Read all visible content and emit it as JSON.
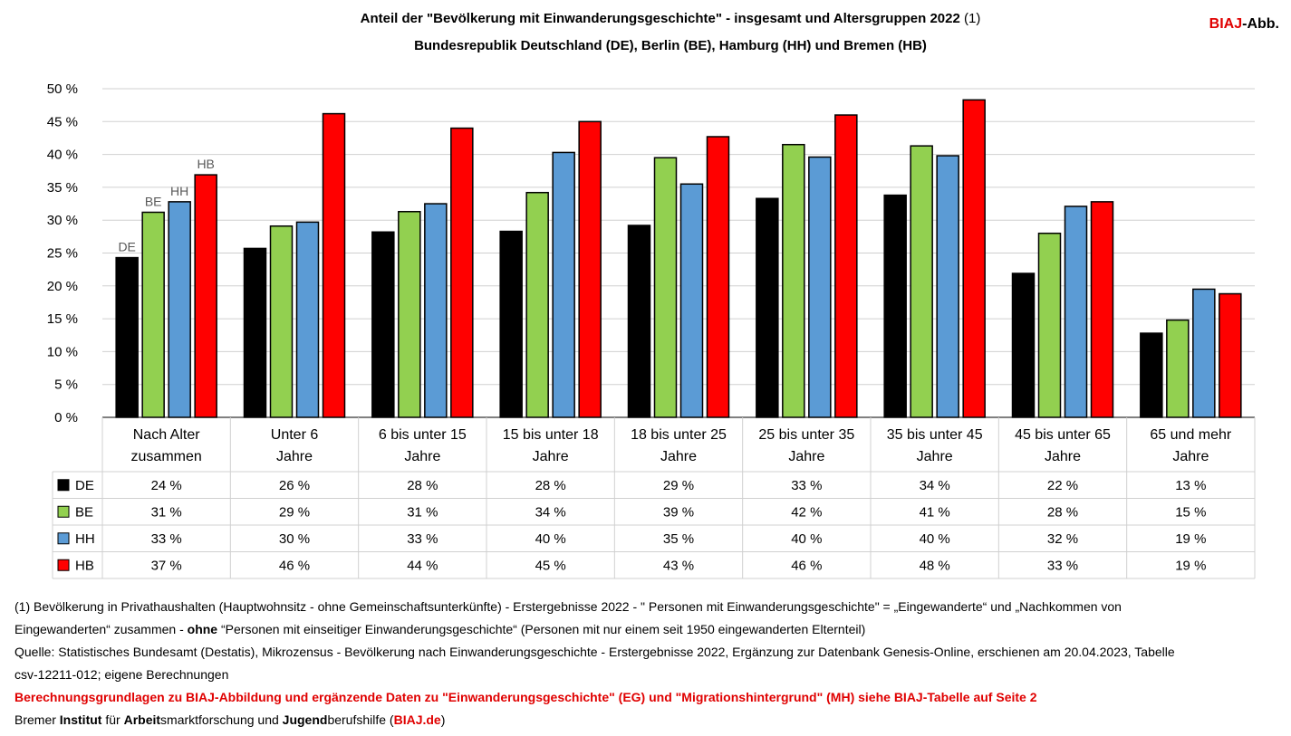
{
  "header": {
    "title_line1": "Anteil der \"Bevölkerung mit Einwanderungsgeschichte\" - insgesamt und Altersgruppen 2022",
    "title_note": "(1)",
    "title_line2": "Bundesrepublik Deutschland (DE), Berlin (BE), Hamburg (HH) und Bremen (HB)",
    "logo_red": "BIAJ",
    "logo_rest": "-Abb."
  },
  "chart_data": {
    "type": "bar",
    "categories": [
      [
        "Nach Alter",
        "zusammen"
      ],
      [
        "Unter 6",
        "Jahre"
      ],
      [
        "6 bis unter 15",
        "Jahre"
      ],
      [
        "15 bis unter 18",
        "Jahre"
      ],
      [
        "18 bis unter 25",
        "Jahre"
      ],
      [
        "25 bis unter 35",
        "Jahre"
      ],
      [
        "35 bis unter 45",
        "Jahre"
      ],
      [
        "45 bis unter 65",
        "Jahre"
      ],
      [
        "65 und mehr",
        "Jahre"
      ]
    ],
    "series": [
      {
        "name": "DE",
        "color": "#000000",
        "values": [
          24.3,
          25.7,
          28.2,
          28.3,
          29.2,
          33.3,
          33.8,
          21.9,
          12.8
        ],
        "labels": [
          "24 %",
          "26 %",
          "28 %",
          "28 %",
          "29 %",
          "33 %",
          "34 %",
          "22 %",
          "13 %"
        ]
      },
      {
        "name": "BE",
        "color": "#92d050",
        "values": [
          31.2,
          29.1,
          31.3,
          34.2,
          39.5,
          41.5,
          41.3,
          28.0,
          14.8
        ],
        "labels": [
          "31 %",
          "29 %",
          "31 %",
          "34 %",
          "39 %",
          "42 %",
          "41 %",
          "28 %",
          "15 %"
        ]
      },
      {
        "name": "HH",
        "color": "#5b9bd5",
        "values": [
          32.8,
          29.7,
          32.5,
          40.3,
          35.5,
          39.6,
          39.8,
          32.1,
          19.5
        ],
        "labels": [
          "33 %",
          "30 %",
          "33 %",
          "40 %",
          "35 %",
          "40 %",
          "40 %",
          "32 %",
          "19 %"
        ]
      },
      {
        "name": "HB",
        "color": "#ff0000",
        "values": [
          36.9,
          46.2,
          44.0,
          45.0,
          42.7,
          46.0,
          48.3,
          32.8,
          18.8
        ],
        "labels": [
          "37 %",
          "46 %",
          "44 %",
          "45 %",
          "43 %",
          "46 %",
          "48 %",
          "33 %",
          "19 %"
        ]
      }
    ],
    "first_group_bar_labels": [
      "DE",
      "BE",
      "HH",
      "HB"
    ],
    "y_ticks": [
      "0 %",
      "5 %",
      "10 %",
      "15 %",
      "20 %",
      "25 %",
      "30 %",
      "35 %",
      "40 %",
      "45 %",
      "50 %"
    ],
    "ylim": [
      0,
      50
    ],
    "grid": true,
    "legend": "data-table"
  },
  "footer": {
    "line1": "(1) Bevölkerung in Privathaushalten (Hauptwohnsitz - ohne Gemeinschaftsunterkünfte) - Erstergebnisse 2022 -  \" Personen mit Einwanderungsgeschichte\" = „Eingewanderte“ und „Nachkommen von",
    "line2_a": "Eingewanderten“ zusammen - ",
    "line2_bold": "ohne",
    "line2_b": " “Personen mit einseitiger Einwanderungsgeschichte“ (Personen mit nur einem seit 1950 eingewanderten Elternteil)",
    "line3": "Quelle: Statistisches Bundesamt (Destatis), Mikrozensus - Bevölkerung nach Einwanderungsgeschichte - Erstergebnisse 2022, Ergänzung zur Datenbank Genesis-Online, erschienen am 20.04.2023, Tabelle",
    "line4": "csv-12211-012; eigene Berechnungen",
    "line5": "Berechnungsgrundlagen zu BIAJ-Abbildung und ergänzende Daten zu \"Einwanderungsgeschichte\" (EG) und \"Migrationshintergrund\" (MH) siehe BIAJ-Tabelle auf Seite 2",
    "line6_parts": [
      "Bremer ",
      "Institut",
      " für ",
      "Arbeit",
      "smarktforschung und ",
      "Jugend",
      "berufshilfe (",
      "BIAJ.de",
      ")"
    ]
  }
}
